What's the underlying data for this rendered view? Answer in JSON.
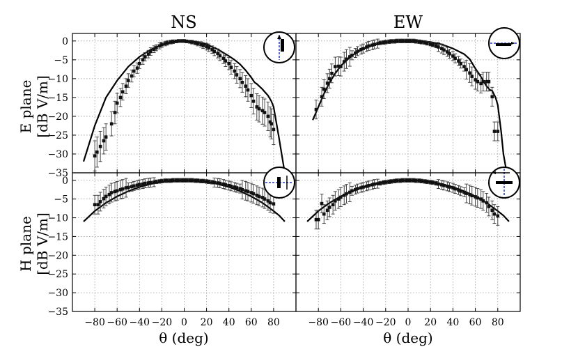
{
  "chart_data": {
    "type": "scatter",
    "columns": [
      {
        "title": "NS"
      },
      {
        "title": "EW"
      }
    ],
    "rows": [
      {
        "ylabel_line1": "E plane",
        "ylabel_line2": "[dB V/m]"
      },
      {
        "ylabel_line1": "H plane",
        "ylabel_line2": "[dB V/m]"
      }
    ],
    "xlabel": "θ (deg)",
    "xlim": [
      -100,
      100
    ],
    "ylim": [
      -35,
      2
    ],
    "xticks": [
      -80,
      -60,
      -40,
      -20,
      0,
      20,
      40,
      60,
      80
    ],
    "yticks": [
      0,
      -5,
      -10,
      -15,
      -20,
      -25,
      -30,
      -35
    ],
    "grid": true,
    "colors": {
      "data": "#111111",
      "model": "#000000",
      "grid": "#999999",
      "guide": "#2233cc"
    },
    "panels": [
      {
        "id": "e-plane-ns",
        "row": 0,
        "col": 0,
        "model": {
          "x": [
            -90,
            -80,
            -70,
            -60,
            -50,
            -40,
            -30,
            -20,
            -10,
            0,
            10,
            20,
            30,
            40,
            45,
            50,
            55,
            60,
            63,
            65,
            70,
            75,
            78,
            80,
            85,
            90
          ],
          "y": [
            -32,
            -22.5,
            -15,
            -10.5,
            -6.8,
            -4.2,
            -2.3,
            -1.0,
            -0.25,
            0,
            -0.25,
            -0.9,
            -2.2,
            -4.0,
            -5.0,
            -6.2,
            -7.8,
            -9.7,
            -11,
            -11.4,
            -12.8,
            -14.5,
            -16,
            -17.5,
            -26,
            -35
          ]
        },
        "data": {
          "x": [
            -80,
            -78,
            -75,
            -72,
            -70,
            -65,
            -62,
            -60,
            -57,
            -55,
            -52,
            -50,
            -47,
            -45,
            -42,
            -40,
            -37,
            -35,
            -32,
            -30,
            -27,
            -25,
            -22,
            -20,
            -17,
            -15,
            -12,
            -10,
            -7,
            -5,
            -2,
            0,
            2,
            5,
            7,
            10,
            12,
            15,
            17,
            20,
            22,
            25,
            27,
            30,
            32,
            35,
            37,
            40,
            42,
            45,
            47,
            50,
            52,
            55,
            57,
            60,
            62,
            65,
            67,
            70,
            72,
            75,
            77,
            78,
            80
          ],
          "y": [
            -30.5,
            -29.5,
            -28,
            -26.5,
            -25.5,
            -22,
            -19,
            -16.5,
            -15,
            -13.5,
            -12,
            -10.5,
            -9.3,
            -8,
            -7.2,
            -6,
            -5,
            -4.2,
            -3.5,
            -2.8,
            -2.2,
            -1.8,
            -1.3,
            -1,
            -0.7,
            -0.5,
            -0.3,
            -0.2,
            -0.1,
            0,
            0,
            0,
            -0.1,
            -0.2,
            -0.3,
            -0.5,
            -0.7,
            -0.9,
            -1.2,
            -1.5,
            -1.8,
            -2.3,
            -2.8,
            -3.3,
            -3.9,
            -4.6,
            -5.3,
            -6,
            -7,
            -8,
            -9,
            -10,
            -11,
            -12,
            -13,
            -14.5,
            -16,
            -17.5,
            -18,
            -18.5,
            -19,
            -20,
            -21.5,
            -22,
            -23.5
          ],
          "err": [
            4,
            4,
            4,
            3.5,
            3.5,
            3.2,
            3,
            2.6,
            2.4,
            2.2,
            2,
            1.8,
            1.6,
            1.5,
            1.4,
            1.3,
            1.2,
            1.1,
            1,
            1,
            0.9,
            0.8,
            0.8,
            0.7,
            0.6,
            0.6,
            0.5,
            0.5,
            0.4,
            0.4,
            0.4,
            0.4,
            0.4,
            0.4,
            0.5,
            0.5,
            0.6,
            0.7,
            0.8,
            0.9,
            1,
            1,
            1.1,
            1.2,
            1.3,
            1.4,
            1.5,
            1.6,
            1.8,
            2,
            2.2,
            2.4,
            2.6,
            2.8,
            3,
            3.2,
            3.4,
            3.5,
            3.5,
            3.6,
            3.6,
            3.8,
            4,
            4,
            4
          ]
        }
      },
      {
        "id": "e-plane-ew",
        "row": 0,
        "col": 1,
        "model": {
          "x": [
            -85,
            -80,
            -75,
            -70,
            -65,
            -60,
            -50,
            -40,
            -30,
            -20,
            -10,
            0,
            10,
            20,
            30,
            40,
            50,
            55,
            60,
            65,
            70,
            73,
            75,
            78,
            80,
            83,
            85,
            88
          ],
          "y": [
            -21,
            -17.5,
            -14,
            -11,
            -8.6,
            -6.6,
            -3.8,
            -2.1,
            -1.0,
            -0.35,
            -0.05,
            0,
            -0.05,
            -0.3,
            -0.9,
            -2.0,
            -3.5,
            -4.8,
            -7.3,
            -9.5,
            -12,
            -13,
            -13.2,
            -15,
            -17,
            -24,
            -30,
            -35
          ]
        },
        "data": {
          "x": [
            -82,
            -77,
            -75,
            -72,
            -70,
            -68,
            -65,
            -62,
            -60,
            -57,
            -55,
            -52,
            -50,
            -47,
            -45,
            -42,
            -40,
            -37,
            -35,
            -32,
            -30,
            -27,
            -25,
            -22,
            -20,
            -17,
            -15,
            -12,
            -10,
            -7,
            -5,
            -2,
            0,
            2,
            5,
            7,
            10,
            12,
            15,
            17,
            20,
            22,
            25,
            27,
            30,
            32,
            35,
            37,
            40,
            42,
            45,
            47,
            50,
            52,
            55,
            57,
            60,
            62,
            65,
            67,
            70,
            72,
            75,
            77,
            80
          ],
          "y": [
            -18.2,
            -14.8,
            -12.8,
            -11.2,
            -10,
            -8.6,
            -6.8,
            -6.7,
            -6.8,
            -5.5,
            -4.8,
            -4.2,
            -3.8,
            -3.2,
            -2.7,
            -2.3,
            -2,
            -1.6,
            -1.3,
            -1.1,
            -0.9,
            -0.7,
            -0.5,
            -0.4,
            -0.3,
            -0.2,
            -0.1,
            -0.1,
            0,
            0,
            0,
            0,
            0,
            0,
            0,
            -0.1,
            -0.2,
            -0.3,
            -0.4,
            -0.6,
            -0.8,
            -1,
            -1.3,
            -1.6,
            -2,
            -2.4,
            -2.9,
            -3.4,
            -4,
            -4.6,
            -5.3,
            -6,
            -6.8,
            -7.6,
            -8.5,
            -9.4,
            -10.3,
            -10.8,
            -11.3,
            -10.8,
            -10.8,
            -10.8,
            -14.8,
            -24,
            -24
          ]
        },
        "err_note": "approx",
        "errscale": 1
      },
      {
        "id": "h-plane-ns",
        "row": 1,
        "col": 0,
        "model": {
          "x": [
            -90,
            -80,
            -70,
            -60,
            -50,
            -40,
            -30,
            -20,
            -10,
            0,
            10,
            20,
            30,
            40,
            50,
            60,
            70,
            80,
            85,
            90
          ],
          "y": [
            -11,
            -8.2,
            -6.0,
            -4.3,
            -2.9,
            -1.8,
            -1.0,
            -0.45,
            -0.1,
            0,
            -0.1,
            -0.45,
            -1.0,
            -1.8,
            -2.9,
            -4.3,
            -6.0,
            -8.2,
            -9.4,
            -11
          ]
        },
        "data": {
          "x": [
            -80,
            -77,
            -75,
            -72,
            -70,
            -67,
            -65,
            -62,
            -60,
            -57,
            -55,
            -52,
            -50,
            -47,
            -45,
            -42,
            -40,
            -37,
            -35,
            -32,
            -30,
            -27,
            -25,
            -22,
            -20,
            -17,
            -15,
            -12,
            -10,
            -7,
            -5,
            -2,
            0,
            2,
            5,
            7,
            10,
            12,
            15,
            17,
            20,
            22,
            25,
            27,
            30,
            32,
            35,
            37,
            40,
            42,
            45,
            47,
            50,
            52,
            55,
            57,
            60,
            62,
            65,
            67,
            70,
            72,
            75,
            77,
            80
          ],
          "y": [
            -6.5,
            -6.5,
            -5.7,
            -4.9,
            -4.3,
            -3.8,
            -3.3,
            -3,
            -2.8,
            -2.5,
            -2.3,
            -2,
            -1.9,
            -1.7,
            -1.5,
            -1.3,
            -1.1,
            -1,
            -0.8,
            -0.7,
            -0.6,
            -0.5,
            -0.4,
            -0.3,
            -0.2,
            -0.1,
            -0.1,
            -0.1,
            0,
            0,
            0,
            0,
            0,
            0,
            0,
            0,
            -0.1,
            -0.1,
            -0.2,
            -0.2,
            -0.3,
            -0.4,
            -0.5,
            -0.6,
            -0.7,
            -0.8,
            -1,
            -1.2,
            -1.4,
            -1.6,
            -1.8,
            -2,
            -2.2,
            -2.5,
            -2.8,
            -3,
            -3.3,
            -3.6,
            -4,
            -4.3,
            -4.6,
            -5,
            -5.5,
            -6,
            -6.3
          ]
        }
      },
      {
        "id": "h-plane-ew",
        "row": 1,
        "col": 1,
        "model": {
          "x": [
            -90,
            -80,
            -70,
            -60,
            -50,
            -40,
            -30,
            -20,
            -10,
            0,
            10,
            20,
            30,
            40,
            50,
            60,
            70,
            80,
            85,
            90
          ],
          "y": [
            -11,
            -8.2,
            -6.0,
            -4.3,
            -2.9,
            -1.8,
            -1.0,
            -0.45,
            -0.1,
            0,
            -0.1,
            -0.45,
            -1.0,
            -1.8,
            -2.9,
            -4.3,
            -6.0,
            -8.2,
            -9.4,
            -11
          ]
        },
        "data": {
          "x": [
            -82,
            -80,
            -77,
            -75,
            -72,
            -70,
            -67,
            -65,
            -62,
            -60,
            -57,
            -55,
            -52,
            -50,
            -47,
            -45,
            -42,
            -40,
            -37,
            -35,
            -32,
            -30,
            -27,
            -25,
            -22,
            -20,
            -17,
            -15,
            -12,
            -10,
            -7,
            -5,
            -2,
            0,
            2,
            5,
            7,
            10,
            12,
            15,
            17,
            20,
            22,
            25,
            27,
            30,
            32,
            35,
            37,
            40,
            42,
            45,
            47,
            50,
            52,
            55,
            57,
            60,
            62,
            65,
            67,
            70,
            72,
            75,
            77,
            80
          ],
          "y": [
            -10.5,
            -10.5,
            -6.2,
            -9,
            -8,
            -7.2,
            -6.5,
            -5.5,
            -5,
            -4.5,
            -4,
            -3.6,
            -3.2,
            -2.8,
            -2.5,
            -2.2,
            -2,
            -1.8,
            -1.6,
            -1.4,
            -1.2,
            -1,
            -0.9,
            -0.8,
            -0.6,
            -0.5,
            -0.4,
            -0.3,
            -0.2,
            -0.1,
            -0.1,
            0,
            0,
            0,
            0,
            0,
            -0.1,
            -0.1,
            -0.2,
            -0.3,
            -0.4,
            -0.5,
            -0.6,
            -0.8,
            -1,
            -1.2,
            -1.4,
            -1.6,
            -1.8,
            -2,
            -2.3,
            -2.6,
            -2.9,
            -3.2,
            -3.5,
            -3.8,
            -4.1,
            -4.4,
            -4.7,
            -5,
            -5.5,
            -6,
            -7,
            -8,
            -9,
            -9.5
          ]
        }
      }
    ]
  }
}
